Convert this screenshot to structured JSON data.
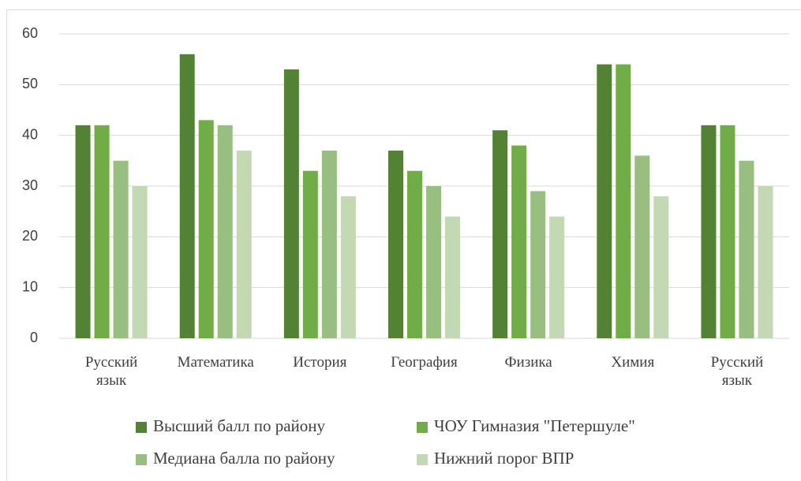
{
  "chart_data": {
    "type": "bar",
    "categories": [
      "Русский язык",
      "Математика",
      "История",
      "География",
      "Физика",
      "Химия",
      "Русский язык"
    ],
    "series": [
      {
        "name": "Высший балл по району",
        "color": "#548235",
        "values": [
          42,
          56,
          53,
          37,
          41,
          54,
          42
        ]
      },
      {
        "name": "ЧОУ Гимназия \"Петершуле\"",
        "color": "#70ad47",
        "values": [
          42,
          43,
          33,
          33,
          38,
          54,
          42
        ]
      },
      {
        "name": "Медиана балла по району",
        "color": "#98bf80",
        "values": [
          35,
          42,
          37,
          30,
          29,
          36,
          35
        ]
      },
      {
        "name": "Нижний порог ВПР",
        "color": "#c3d9b3",
        "values": [
          30,
          37,
          28,
          24,
          24,
          28,
          30
        ]
      }
    ],
    "ylim": [
      0,
      60
    ],
    "yticks": [
      0,
      10,
      20,
      30,
      40,
      50,
      60
    ],
    "grid": true,
    "legend": "bottom"
  }
}
